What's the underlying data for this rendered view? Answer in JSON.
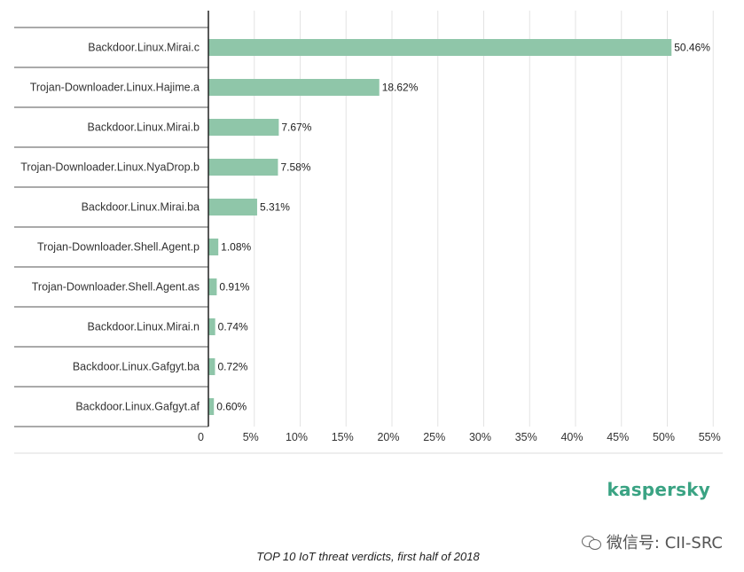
{
  "chart_data": {
    "type": "bar",
    "orientation": "horizontal",
    "categories": [
      "Backdoor.Linux.Mirai.c",
      "Trojan-Downloader.Linux.Hajime.a",
      "Backdoor.Linux.Mirai.b",
      "Trojan-Downloader.Linux.NyaDrop.b",
      "Backdoor.Linux.Mirai.ba",
      "Trojan-Downloader.Shell.Agent.p",
      "Trojan-Downloader.Shell.Agent.as",
      "Backdoor.Linux.Mirai.n",
      "Backdoor.Linux.Gafgyt.ba",
      "Backdoor.Linux.Gafgyt.af"
    ],
    "values": [
      50.46,
      18.62,
      7.67,
      7.58,
      5.31,
      1.08,
      0.91,
      0.74,
      0.72,
      0.6
    ],
    "value_labels": [
      "50.46%",
      "18.62%",
      "7.67%",
      "7.58%",
      "5.31%",
      "1.08%",
      "0.91%",
      "0.74%",
      "0.72%",
      "0.60%"
    ],
    "xticks": [
      "0",
      "5%",
      "10%",
      "15%",
      "20%",
      "25%",
      "30%",
      "35%",
      "40%",
      "45%",
      "50%",
      "55%"
    ],
    "xlim": [
      0,
      55
    ],
    "grid": "vertical",
    "bar_color": "#8fc6a9"
  },
  "brand": "kaspersky",
  "brand_color": "#3aa383",
  "caption": "TOP 10 IoT threat verdicts, first half of 2018",
  "watermark": "微信号: CII-SRC"
}
